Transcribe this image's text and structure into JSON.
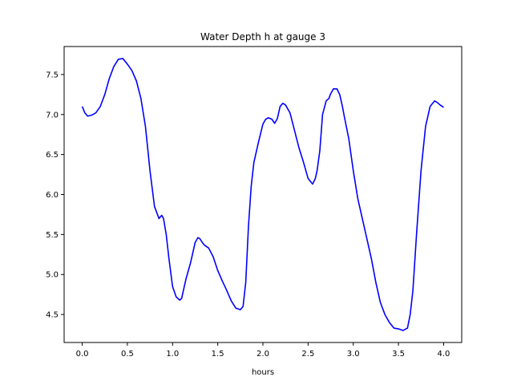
{
  "chart_data": {
    "type": "line",
    "title": "Water Depth h at gauge 3",
    "xlabel": "hours",
    "ylabel": "",
    "xlim": [
      -0.2,
      4.2
    ],
    "ylim": [
      4.15,
      7.85
    ],
    "xticks": [
      0.0,
      0.5,
      1.0,
      1.5,
      2.0,
      2.5,
      3.0,
      3.5,
      4.0
    ],
    "xtick_labels": [
      "0.0",
      "0.5",
      "1.0",
      "1.5",
      "2.0",
      "2.5",
      "3.0",
      "3.5",
      "4.0"
    ],
    "yticks": [
      4.5,
      5.0,
      5.5,
      6.0,
      6.5,
      7.0,
      7.5
    ],
    "ytick_labels": [
      "4.5",
      "5.0",
      "5.5",
      "6.0",
      "6.5",
      "7.0",
      "7.5"
    ],
    "grid": false,
    "legend": "none",
    "series": [
      {
        "color": "#0000ff",
        "x": [
          0.0,
          0.03,
          0.06,
          0.1,
          0.15,
          0.2,
          0.25,
          0.3,
          0.35,
          0.4,
          0.45,
          0.5,
          0.55,
          0.6,
          0.65,
          0.7,
          0.75,
          0.8,
          0.85,
          0.88,
          0.9,
          0.93,
          0.96,
          1.0,
          1.04,
          1.08,
          1.1,
          1.12,
          1.15,
          1.2,
          1.25,
          1.28,
          1.3,
          1.33,
          1.35,
          1.4,
          1.45,
          1.5,
          1.55,
          1.6,
          1.65,
          1.7,
          1.75,
          1.78,
          1.81,
          1.84,
          1.87,
          1.9,
          1.95,
          2.0,
          2.03,
          2.06,
          2.1,
          2.13,
          2.16,
          2.19,
          2.22,
          2.25,
          2.3,
          2.35,
          2.4,
          2.45,
          2.5,
          2.55,
          2.58,
          2.6,
          2.63,
          2.66,
          2.7,
          2.73,
          2.75,
          2.78,
          2.82,
          2.85,
          2.88,
          2.9,
          2.95,
          3.0,
          3.05,
          3.1,
          3.15,
          3.2,
          3.25,
          3.3,
          3.35,
          3.4,
          3.45,
          3.5,
          3.55,
          3.6,
          3.63,
          3.66,
          3.7,
          3.75,
          3.8,
          3.85,
          3.9,
          3.93,
          3.96,
          4.0
        ],
        "y": [
          7.1,
          7.02,
          6.98,
          6.99,
          7.02,
          7.1,
          7.25,
          7.45,
          7.6,
          7.69,
          7.7,
          7.63,
          7.55,
          7.42,
          7.2,
          6.85,
          6.3,
          5.85,
          5.7,
          5.74,
          5.7,
          5.5,
          5.2,
          4.85,
          4.72,
          4.68,
          4.7,
          4.8,
          4.95,
          5.15,
          5.4,
          5.46,
          5.45,
          5.4,
          5.37,
          5.33,
          5.22,
          5.05,
          4.92,
          4.8,
          4.67,
          4.58,
          4.56,
          4.6,
          4.9,
          5.6,
          6.1,
          6.4,
          6.65,
          6.88,
          6.94,
          6.96,
          6.94,
          6.89,
          6.95,
          7.1,
          7.14,
          7.12,
          7.02,
          6.8,
          6.58,
          6.4,
          6.2,
          6.13,
          6.2,
          6.3,
          6.55,
          7.0,
          7.17,
          7.2,
          7.26,
          7.32,
          7.32,
          7.25,
          7.1,
          6.98,
          6.7,
          6.3,
          5.95,
          5.7,
          5.45,
          5.2,
          4.9,
          4.65,
          4.5,
          4.4,
          4.33,
          4.32,
          4.3,
          4.33,
          4.5,
          4.8,
          5.5,
          6.3,
          6.85,
          7.1,
          7.17,
          7.15,
          7.12,
          7.09
        ]
      }
    ]
  }
}
